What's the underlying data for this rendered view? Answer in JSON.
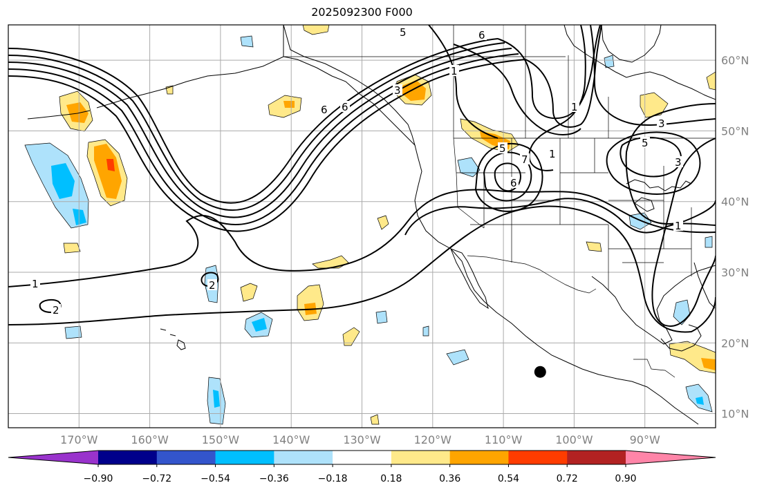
{
  "title": "2025092300 F000",
  "map": {
    "projection": "PlateCarree",
    "lon_range": [
      -180,
      -80
    ],
    "lat_range": [
      8,
      65
    ],
    "gridlines": true,
    "lon_ticks": [
      {
        "value": -170,
        "label": "170°W"
      },
      {
        "value": -160,
        "label": "160°W"
      },
      {
        "value": -150,
        "label": "150°W"
      },
      {
        "value": -140,
        "label": "140°W"
      },
      {
        "value": -130,
        "label": "130°W"
      },
      {
        "value": -120,
        "label": "120°W"
      },
      {
        "value": -110,
        "label": "110°W"
      },
      {
        "value": -100,
        "label": "100°W"
      },
      {
        "value": -90,
        "label": "90°W"
      }
    ],
    "lat_ticks": [
      {
        "value": 60,
        "label": "60°N"
      },
      {
        "value": 50,
        "label": "50°N"
      },
      {
        "value": 40,
        "label": "40°N"
      },
      {
        "value": 30,
        "label": "30°N"
      },
      {
        "value": 20,
        "label": "20°N"
      },
      {
        "value": 10,
        "label": "10°N"
      }
    ],
    "marker": {
      "name": "black-dot",
      "lon": -104.8,
      "lat": 15.9
    },
    "contour_labels": [
      "5",
      "6",
      "1",
      "3",
      "6",
      "5",
      "1",
      "3",
      "5",
      "6",
      "1",
      "1",
      "2",
      "2",
      "7",
      "6",
      "1",
      "3"
    ]
  },
  "colorbar": {
    "orientation": "horizontal",
    "extend": "both",
    "colors": [
      "#9933cc",
      "#00008b",
      "#3355cc",
      "#00bfff",
      "#aee2fb",
      "#ffffff",
      "#ffe98a",
      "#ffa500",
      "#ff3c00",
      "#b22222",
      "#ff85a8"
    ],
    "labels": [
      "−0.90",
      "−0.72",
      "−0.54",
      "−0.36",
      "−0.18",
      "0.18",
      "0.36",
      "0.54",
      "0.72",
      "0.90"
    ]
  }
}
